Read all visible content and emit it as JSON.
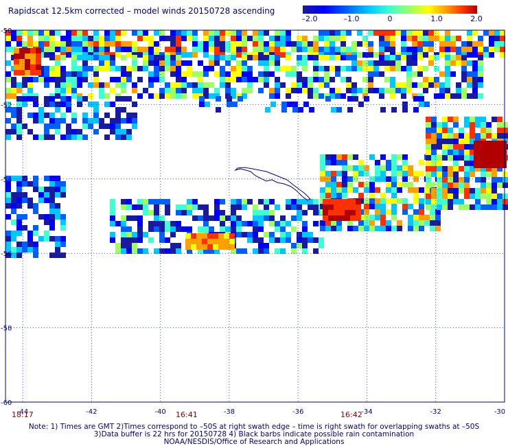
{
  "title": "Rapidscat 12.5km corrected – model winds 20150728 ascending",
  "colorbar": {
    "ticks": [
      "–2.0",
      "–1.0",
      "0",
      "1.0",
      "2.0"
    ],
    "colors": [
      "#1a1aa0",
      "#0000ff",
      "#0060ff",
      "#00c8ff",
      "#40ffd0",
      "#a0ff60",
      "#ffff00",
      "#ffa000",
      "#ff3000",
      "#b00000"
    ]
  },
  "map": {
    "lat_labels": [
      "-50",
      "-52",
      "-54",
      "-56",
      "-58",
      "-60"
    ],
    "lon_labels": [
      "-44",
      "-42",
      "-40",
      "-38",
      "-36",
      "-34",
      "-32",
      "-30"
    ],
    "time_labels": [
      "18:17",
      "16:41",
      "16:42"
    ],
    "time_color": "#8b0000",
    "grid_color": "#3050c0"
  },
  "footer": {
    "line1": "Note: 1) Times are GMT 2)Times correspond to –50S at right swath edge – time is right swath for overlapping swaths at –50S",
    "line2": "3)Data buffer is 22 hrs for 20150728 4) Black barbs indicate possible rain contamination",
    "line3": "NOAA/NESDIS/Office of Research and Applications"
  }
}
